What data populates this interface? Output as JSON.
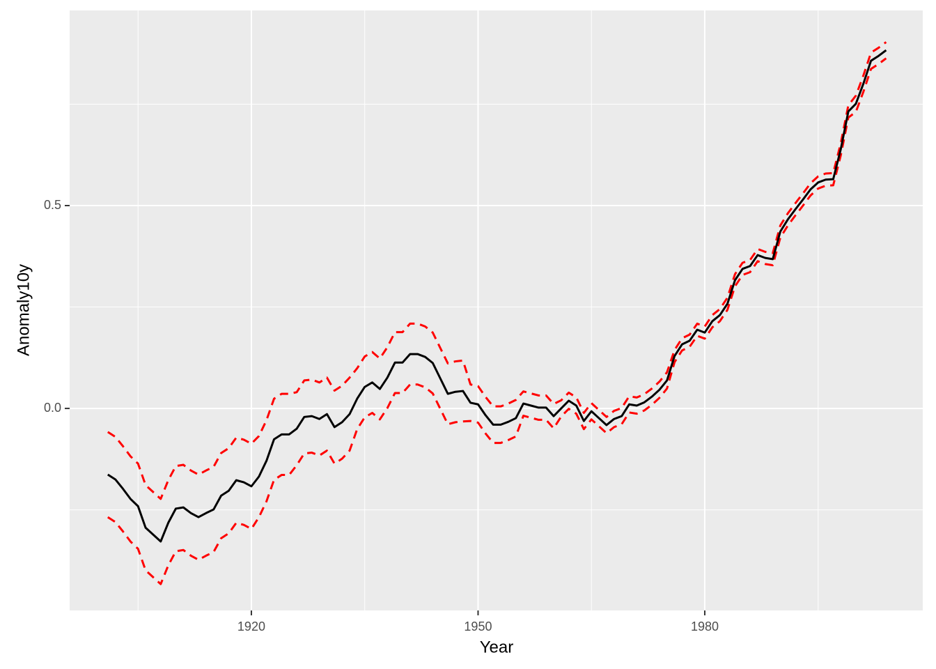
{
  "chart_data": {
    "type": "line",
    "x_label": "Year",
    "y_label": "Anomaly10y",
    "x": [
      1901,
      1902,
      1903,
      1904,
      1905,
      1906,
      1907,
      1908,
      1909,
      1910,
      1911,
      1912,
      1913,
      1914,
      1915,
      1916,
      1917,
      1918,
      1919,
      1920,
      1921,
      1922,
      1923,
      1924,
      1925,
      1926,
      1927,
      1928,
      1929,
      1930,
      1931,
      1932,
      1933,
      1934,
      1935,
      1936,
      1937,
      1938,
      1939,
      1940,
      1941,
      1942,
      1943,
      1944,
      1945,
      1946,
      1947,
      1948,
      1949,
      1950,
      1951,
      1952,
      1953,
      1954,
      1955,
      1956,
      1957,
      1958,
      1959,
      1960,
      1961,
      1962,
      1963,
      1964,
      1965,
      1966,
      1967,
      1968,
      1969,
      1970,
      1971,
      1972,
      1973,
      1974,
      1975,
      1976,
      1977,
      1978,
      1979,
      1980,
      1981,
      1982,
      1983,
      1984,
      1985,
      1986,
      1987,
      1988,
      1989,
      1990,
      1991,
      1992,
      1993,
      1994,
      1995,
      1996,
      1997,
      1998,
      1999,
      2000,
      2001,
      2002,
      2003,
      2004
    ],
    "series": [
      {
        "color": "#ff0000",
        "dashed": true,
        "values": [
          -0.058,
          -0.07,
          -0.093,
          -0.118,
          -0.136,
          -0.189,
          -0.206,
          -0.223,
          -0.177,
          -0.142,
          -0.139,
          -0.153,
          -0.163,
          -0.153,
          -0.144,
          -0.11,
          -0.098,
          -0.072,
          -0.077,
          -0.087,
          -0.068,
          -0.029,
          0.024,
          0.036,
          0.036,
          0.04,
          0.069,
          0.071,
          0.064,
          0.076,
          0.044,
          0.056,
          0.076,
          0.099,
          0.128,
          0.139,
          0.123,
          0.151,
          0.188,
          0.188,
          0.209,
          0.209,
          0.202,
          0.187,
          0.149,
          0.111,
          0.116,
          0.118,
          0.059,
          0.055,
          0.028,
          0.005,
          0.005,
          0.012,
          0.021,
          0.042,
          0.037,
          0.032,
          0.032,
          0.011,
          0.02,
          0.039,
          0.027,
          -0.011,
          0.013,
          -0.004,
          -0.021,
          -0.006,
          0.001,
          0.03,
          0.027,
          0.035,
          0.049,
          0.066,
          0.089,
          0.144,
          0.173,
          0.182,
          0.209,
          0.202,
          0.23,
          0.245,
          0.273,
          0.331,
          0.359,
          0.366,
          0.393,
          0.386,
          0.383,
          0.451,
          0.481,
          0.506,
          0.53,
          0.555,
          0.572,
          0.579,
          0.58,
          0.654,
          0.747,
          0.771,
          0.821,
          0.877,
          0.889,
          0.903
        ]
      },
      {
        "color": "#ff0000",
        "dashed": true,
        "values": [
          -0.268,
          -0.28,
          -0.303,
          -0.328,
          -0.346,
          -0.399,
          -0.416,
          -0.433,
          -0.387,
          -0.352,
          -0.349,
          -0.363,
          -0.373,
          -0.363,
          -0.354,
          -0.32,
          -0.308,
          -0.282,
          -0.287,
          -0.297,
          -0.268,
          -0.229,
          -0.176,
          -0.164,
          -0.164,
          -0.14,
          -0.111,
          -0.109,
          -0.116,
          -0.104,
          -0.136,
          -0.124,
          -0.104,
          -0.051,
          -0.022,
          -0.011,
          -0.027,
          0.001,
          0.038,
          0.038,
          0.059,
          0.059,
          0.052,
          0.037,
          -0.001,
          -0.039,
          -0.034,
          -0.032,
          -0.031,
          -0.035,
          -0.062,
          -0.085,
          -0.085,
          -0.078,
          -0.069,
          -0.018,
          -0.023,
          -0.028,
          -0.028,
          -0.049,
          -0.02,
          -0.001,
          -0.013,
          -0.051,
          -0.027,
          -0.044,
          -0.061,
          -0.046,
          -0.039,
          -0.01,
          -0.013,
          -0.005,
          0.009,
          0.026,
          0.049,
          0.114,
          0.143,
          0.152,
          0.179,
          0.172,
          0.2,
          0.215,
          0.243,
          0.301,
          0.329,
          0.336,
          0.363,
          0.356,
          0.353,
          0.421,
          0.451,
          0.476,
          0.5,
          0.525,
          0.542,
          0.549,
          0.55,
          0.624,
          0.717,
          0.731,
          0.781,
          0.837,
          0.849,
          0.863
        ]
      },
      {
        "color": "#000000",
        "dashed": false,
        "values": [
          -0.163,
          -0.175,
          -0.198,
          -0.223,
          -0.241,
          -0.294,
          -0.311,
          -0.328,
          -0.282,
          -0.247,
          -0.244,
          -0.258,
          -0.268,
          -0.258,
          -0.249,
          -0.215,
          -0.203,
          -0.177,
          -0.182,
          -0.192,
          -0.168,
          -0.129,
          -0.076,
          -0.064,
          -0.064,
          -0.05,
          -0.021,
          -0.019,
          -0.026,
          -0.014,
          -0.046,
          -0.034,
          -0.014,
          0.024,
          0.053,
          0.064,
          0.048,
          0.076,
          0.113,
          0.113,
          0.134,
          0.134,
          0.127,
          0.112,
          0.074,
          0.036,
          0.041,
          0.043,
          0.014,
          0.01,
          -0.017,
          -0.04,
          -0.04,
          -0.033,
          -0.024,
          0.012,
          0.007,
          0.002,
          0.002,
          -0.019,
          0.0,
          0.019,
          0.007,
          -0.031,
          -0.007,
          -0.024,
          -0.041,
          -0.026,
          -0.019,
          0.01,
          0.007,
          0.015,
          0.029,
          0.046,
          0.069,
          0.129,
          0.158,
          0.167,
          0.194,
          0.187,
          0.215,
          0.23,
          0.258,
          0.316,
          0.344,
          0.351,
          0.378,
          0.371,
          0.368,
          0.436,
          0.466,
          0.491,
          0.515,
          0.54,
          0.557,
          0.564,
          0.565,
          0.639,
          0.732,
          0.751,
          0.801,
          0.857,
          0.869,
          0.883
        ]
      }
    ],
    "xlim": [
      1895.95,
      2008.85
    ],
    "xticks": [
      1920,
      1950,
      1980
    ],
    "x_minor_breaks": [
      1905,
      1935,
      1965,
      1995
    ],
    "ylim": [
      -0.498,
      0.981
    ],
    "yticks": [
      {
        "value": 0,
        "label": "0.0"
      },
      0.5
    ],
    "y_minor_breaks": [
      -0.25,
      0.25,
      0.75
    ],
    "grid": true,
    "background": "#ebebeb"
  }
}
